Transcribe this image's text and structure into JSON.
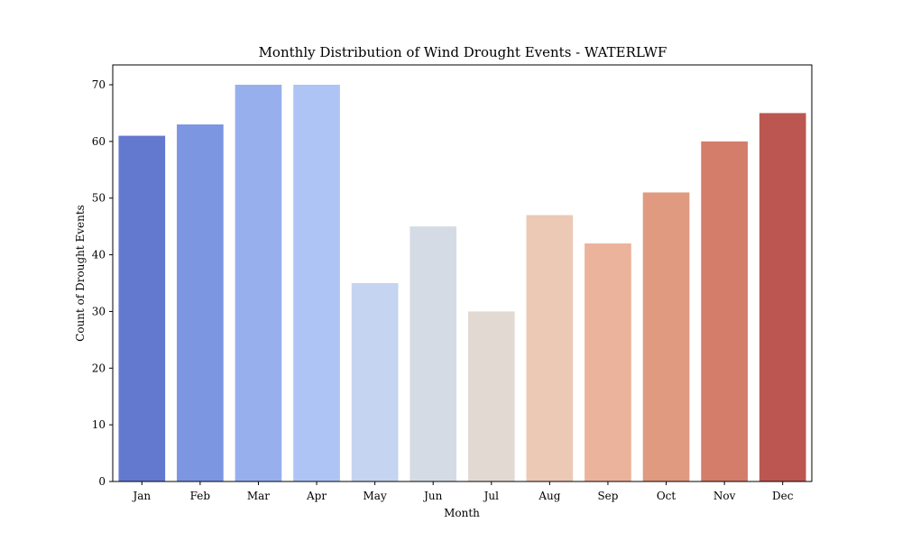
{
  "chart_data": {
    "type": "bar",
    "title": "Monthly Distribution of Wind Drought Events - WATERLWF",
    "xlabel": "Month",
    "ylabel": "Count of Drought Events",
    "categories": [
      "Jan",
      "Feb",
      "Mar",
      "Apr",
      "May",
      "Jun",
      "Jul",
      "Aug",
      "Sep",
      "Oct",
      "Nov",
      "Dec"
    ],
    "values": [
      61,
      63,
      70,
      70,
      35,
      45,
      30,
      47,
      42,
      51,
      60,
      65
    ],
    "colors": [
      "#6379d0",
      "#7d96e2",
      "#97b0ed",
      "#adc4f5",
      "#c5d4f0",
      "#d5dbe5",
      "#e3d9d3",
      "#ecc9b5",
      "#ebb39b",
      "#e09a80",
      "#d37d6a",
      "#bc5650"
    ],
    "ylim": [
      0,
      73.5
    ],
    "yticks": [
      0,
      10,
      20,
      30,
      40,
      50,
      60,
      70
    ],
    "grid": false
  }
}
